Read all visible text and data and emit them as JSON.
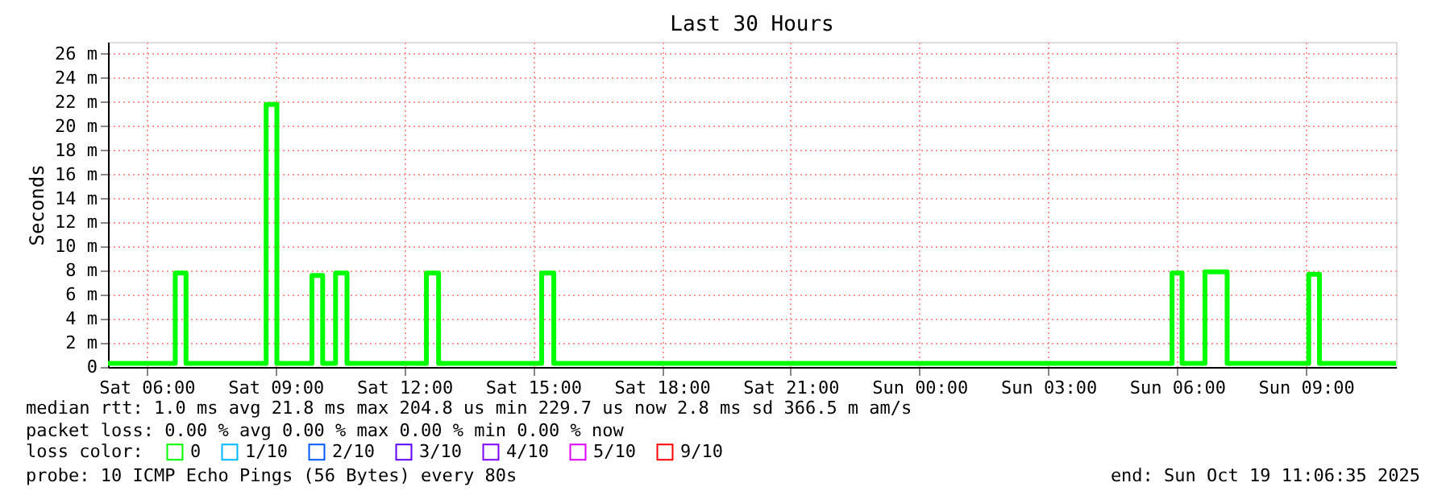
{
  "chart_data": {
    "type": "step",
    "title": "Last 30 Hours",
    "ylabel": "Seconds",
    "legend_title": "loss color:",
    "legend": "bottom left",
    "grid": true,
    "xlim": [
      "2025-10-18T05:06",
      "2025-10-19T11:06"
    ],
    "xticks": [
      {
        "value": "2025-10-18T06:00",
        "label": "Sat 06:00"
      },
      {
        "value": "2025-10-18T09:00",
        "label": "Sat 09:00"
      },
      {
        "value": "2025-10-18T12:00",
        "label": "Sat 12:00"
      },
      {
        "value": "2025-10-18T15:00",
        "label": "Sat 15:00"
      },
      {
        "value": "2025-10-18T18:00",
        "label": "Sat 18:00"
      },
      {
        "value": "2025-10-18T21:00",
        "label": "Sat 21:00"
      },
      {
        "value": "2025-10-19T00:00",
        "label": "Sun 00:00"
      },
      {
        "value": "2025-10-19T03:00",
        "label": "Sun 03:00"
      },
      {
        "value": "2025-10-19T06:00",
        "label": "Sun 06:00"
      },
      {
        "value": "2025-10-19T09:00",
        "label": "Sun 09:00"
      }
    ],
    "ylim": [
      0,
      27
    ],
    "yticks": [
      0,
      {
        "value": 2,
        "label": "2 m"
      },
      {
        "value": 4,
        "label": "4 m"
      },
      {
        "value": 6,
        "label": "6 m"
      },
      {
        "value": 8,
        "label": "8 m"
      },
      {
        "value": 10,
        "label": "10 m"
      },
      {
        "value": 12,
        "label": "12 m"
      },
      {
        "value": 14,
        "label": "14 m"
      },
      {
        "value": 16,
        "label": "16 m"
      },
      {
        "value": 18,
        "label": "18 m"
      },
      {
        "value": 20,
        "label": "20 m"
      },
      {
        "value": 22,
        "label": "22 m"
      },
      {
        "value": 24,
        "label": "24 m"
      },
      {
        "value": 26,
        "label": "26 m"
      }
    ],
    "series": [
      {
        "name": "0",
        "color": "#00ff00",
        "x": [
          "2025-10-18T05:06",
          "2025-10-18T06:40",
          "2025-10-18T06:55",
          "2025-10-18T08:47",
          "2025-10-18T09:02",
          "2025-10-18T09:51",
          "2025-10-18T10:06",
          "2025-10-18T10:24",
          "2025-10-18T10:40",
          "2025-10-18T12:31",
          "2025-10-18T12:48",
          "2025-10-18T15:12",
          "2025-10-18T15:29",
          "2025-10-19T05:53",
          "2025-10-19T06:07",
          "2025-10-19T06:39",
          "2025-10-19T07:10",
          "2025-10-19T09:04",
          "2025-10-19T09:19",
          "2025-10-19T11:06"
        ],
        "values": [
          0.3,
          7.8,
          0.3,
          21.8,
          0.3,
          7.6,
          0.3,
          7.8,
          0.3,
          7.8,
          0.3,
          7.8,
          0.3,
          7.8,
          0.3,
          7.9,
          0.3,
          7.7,
          0.3,
          0.3
        ]
      },
      {
        "name": "1/10",
        "color": "#00b8ff"
      },
      {
        "name": "2/10",
        "color": "#0059ff"
      },
      {
        "name": "3/10",
        "color": "#5e00ff"
      },
      {
        "name": "4/10",
        "color": "#7e00ff"
      },
      {
        "name": "5/10",
        "color": "#dd00ff"
      },
      {
        "name": "9/10",
        "color": "#ff0000"
      }
    ],
    "annotations": [
      "median rtt:  1.0 ms avg  21.8 ms max  204.8 us min  229.7 us now  2.8 ms sd  366.5 m am/s",
      "packet loss: 0.00 % avg  0.00 % max  0.00 % min  0.00 % now",
      "probe:       10 ICMP Echo Pings (56 Bytes) every 80s",
      "end: Sun Oct 19 11:06:35 2025"
    ]
  }
}
